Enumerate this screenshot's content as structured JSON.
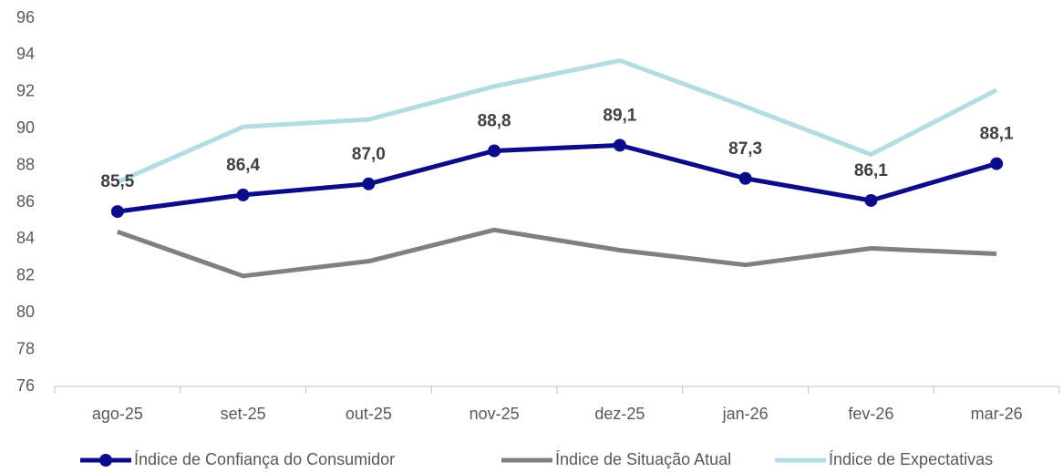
{
  "chart_data": {
    "type": "line",
    "categories": [
      "ago-25",
      "set-25",
      "out-25",
      "nov-25",
      "dez-25",
      "jan-26",
      "fev-26",
      "mar-26"
    ],
    "series": [
      {
        "name": "Índice de Confiança do Consumidor",
        "color": "#0c0c8a",
        "values": [
          85.5,
          86.4,
          87.0,
          88.8,
          89.1,
          87.3,
          86.1,
          88.1
        ],
        "value_labels": [
          "85,5",
          "86,4",
          "87,0",
          "88,8",
          "89,1",
          "87,3",
          "86,1",
          "88,1"
        ],
        "markers": true
      },
      {
        "name": "Índice de Situação Atual",
        "color": "#808080",
        "values": [
          84.4,
          82.0,
          82.8,
          84.5,
          83.4,
          82.6,
          83.5,
          83.2
        ]
      },
      {
        "name": "Índice de Expectativas",
        "color": "#b4dde3",
        "values": [
          87.1,
          90.1,
          90.5,
          92.3,
          93.7,
          91.2,
          88.6,
          92.1
        ]
      }
    ],
    "ylim": [
      76,
      96
    ],
    "yticks": [
      76,
      78,
      80,
      82,
      84,
      86,
      88,
      90,
      92,
      94,
      96
    ],
    "grid": false,
    "legend": "bottom"
  }
}
